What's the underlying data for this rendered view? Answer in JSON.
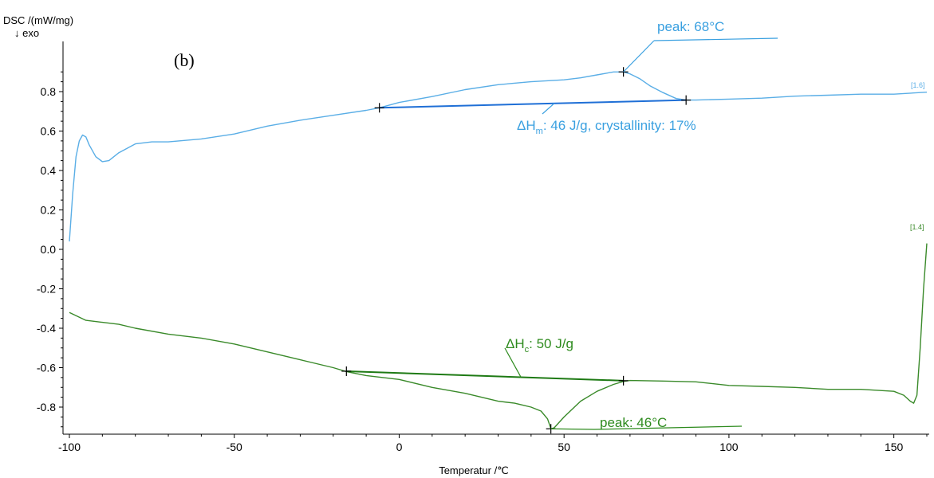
{
  "chart_data": {
    "type": "line",
    "panel_label": "(b)",
    "ylabel": "DSC /(mW/mg)",
    "ylabel_sub": "↓ exo",
    "xlabel": "Temperatur /℃",
    "xlim": [
      -101,
      161
    ],
    "ylim": [
      -0.95,
      0.97
    ],
    "x_ticks": [
      -100,
      -50,
      0,
      50,
      100,
      150
    ],
    "y_ticks": [
      0.8,
      0.6,
      0.4,
      0.2,
      0.0,
      -0.2,
      -0.4,
      -0.6,
      -0.8
    ],
    "x_tick_labels": [
      "-100",
      "-50",
      "0",
      "50",
      "100",
      "150"
    ],
    "y_tick_labels": [
      "0.8",
      "0.6",
      "0.4",
      "0.2",
      "0.0",
      "-0.2",
      "-0.4",
      "-0.6",
      "-0.8"
    ],
    "grid": false,
    "series": [
      {
        "color": "#5aaee6",
        "end_tag": "[1.6]",
        "x": [
          -100,
          -99,
          -98,
          -97,
          -96,
          -95,
          -94,
          -92,
          -90,
          -88,
          -85,
          -80,
          -75,
          -70,
          -60,
          -50,
          -40,
          -30,
          -20,
          -10,
          -6,
          0,
          10,
          20,
          30,
          40,
          50,
          55,
          60,
          65,
          68,
          70,
          73,
          76,
          80,
          84,
          87,
          90,
          100,
          110,
          120,
          130,
          140,
          150,
          160
        ],
        "y": [
          0.04,
          0.28,
          0.47,
          0.55,
          0.58,
          0.57,
          0.53,
          0.47,
          0.445,
          0.45,
          0.49,
          0.535,
          0.545,
          0.545,
          0.56,
          0.585,
          0.625,
          0.655,
          0.68,
          0.705,
          0.718,
          0.745,
          0.775,
          0.81,
          0.835,
          0.85,
          0.86,
          0.87,
          0.885,
          0.9,
          0.9,
          0.89,
          0.865,
          0.83,
          0.795,
          0.765,
          0.757,
          0.757,
          0.762,
          0.767,
          0.777,
          0.782,
          0.787,
          0.787,
          0.797
        ]
      },
      {
        "color": "#3a8a2a",
        "end_tag": "[1.4]",
        "x": [
          -100,
          -95,
          -90,
          -85,
          -80,
          -70,
          -60,
          -50,
          -40,
          -30,
          -20,
          -16,
          -10,
          0,
          10,
          20,
          30,
          35,
          40,
          43,
          45,
          46,
          47,
          50,
          55,
          60,
          65,
          68,
          70,
          80,
          90,
          100,
          110,
          120,
          130,
          140,
          150,
          153,
          155,
          156,
          157,
          158,
          159,
          160
        ],
        "y": [
          -0.32,
          -0.36,
          -0.37,
          -0.38,
          -0.4,
          -0.43,
          -0.45,
          -0.48,
          -0.52,
          -0.56,
          -0.6,
          -0.62,
          -0.64,
          -0.66,
          -0.7,
          -0.73,
          -0.77,
          -0.78,
          -0.8,
          -0.82,
          -0.86,
          -0.91,
          -0.905,
          -0.85,
          -0.77,
          -0.72,
          -0.685,
          -0.67,
          -0.665,
          -0.668,
          -0.672,
          -0.69,
          -0.695,
          -0.7,
          -0.71,
          -0.71,
          -0.72,
          -0.74,
          -0.77,
          -0.78,
          -0.74,
          -0.5,
          -0.2,
          0.03
        ]
      }
    ],
    "baselines": [
      {
        "color": "#1f6fd6",
        "x": [
          -6,
          87
        ],
        "y": [
          0.718,
          0.757
        ]
      },
      {
        "color": "#1e7a14",
        "x": [
          -16,
          68
        ],
        "y": [
          -0.618,
          -0.666
        ]
      }
    ],
    "markers": [
      {
        "color": "#000000",
        "x": -6,
        "y": 0.718
      },
      {
        "color": "#000000",
        "x": 68,
        "y": 0.9
      },
      {
        "color": "#000000",
        "x": 87,
        "y": 0.757
      },
      {
        "color": "#000000",
        "x": -16,
        "y": -0.618
      },
      {
        "color": "#000000",
        "x": 68,
        "y": -0.666
      },
      {
        "color": "#000000",
        "x": 46,
        "y": -0.91
      }
    ],
    "annotations": {
      "melt_peak": {
        "text": "peak: 68°C",
        "color": "#3aa0e0"
      },
      "melt_enthalpy_prefix": "ΔH",
      "melt_enthalpy_sub": "m",
      "melt_enthalpy_rest": ": 46 J/g, crystallinity: 17%",
      "melt_enthalpy_color": "#3aa0e0",
      "cryst_enthalpy_prefix": "ΔH",
      "cryst_enthalpy_sub": "c",
      "cryst_enthalpy_rest": ": 50 J/g",
      "cryst_enthalpy_color": "#2e8b1e",
      "cryst_peak": {
        "text": "peak: 46°C",
        "color": "#2e8b1e"
      }
    }
  }
}
